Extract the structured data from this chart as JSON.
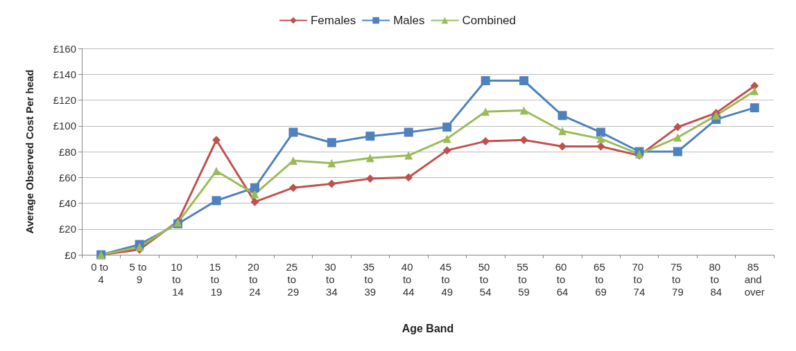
{
  "chart_data": {
    "type": "line",
    "xlabel": "Age Band",
    "ylabel": "Average Observed Cost Per head",
    "categories": [
      "0 to 4",
      "5 to 9",
      "10 to 14",
      "15 to 19",
      "20 to 24",
      "25 to 29",
      "30 to 34",
      "35 to 39",
      "40 to 44",
      "45 to 49",
      "50 to 54",
      "55 to 59",
      "60 to 64",
      "65 to 69",
      "70 to 74",
      "75 to 79",
      "80 to 84",
      "85 and over"
    ],
    "series": [
      {
        "name": "Females",
        "color": "#c0504d",
        "marker": "diamond",
        "values": [
          0,
          4,
          26,
          89,
          41,
          52,
          55,
          59,
          60,
          81,
          88,
          89,
          84,
          84,
          77,
          99,
          110,
          131
        ]
      },
      {
        "name": "Males",
        "color": "#4f81bd",
        "marker": "square",
        "values": [
          0,
          8,
          24,
          42,
          52,
          95,
          87,
          92,
          95,
          99,
          135,
          135,
          108,
          95,
          80,
          80,
          105,
          114
        ]
      },
      {
        "name": "Combined",
        "color": "#9bbb59",
        "marker": "triangle",
        "values": [
          0,
          6,
          25,
          65,
          47,
          73,
          71,
          75,
          77,
          90,
          111,
          112,
          96,
          90,
          78,
          91,
          108,
          127
        ]
      }
    ],
    "ylim": [
      0,
      160
    ],
    "yticks": [
      {
        "value": 0,
        "label": "£0"
      },
      {
        "value": 20,
        "label": "£20"
      },
      {
        "value": 40,
        "label": "£40"
      },
      {
        "value": 60,
        "label": "£60"
      },
      {
        "value": 80,
        "label": "£80"
      },
      {
        "value": 100,
        "label": "£100"
      },
      {
        "value": 120,
        "label": "£120"
      },
      {
        "value": 140,
        "label": "£140"
      },
      {
        "value": 160,
        "label": "£160"
      }
    ],
    "grid": "y",
    "legend": "top"
  }
}
